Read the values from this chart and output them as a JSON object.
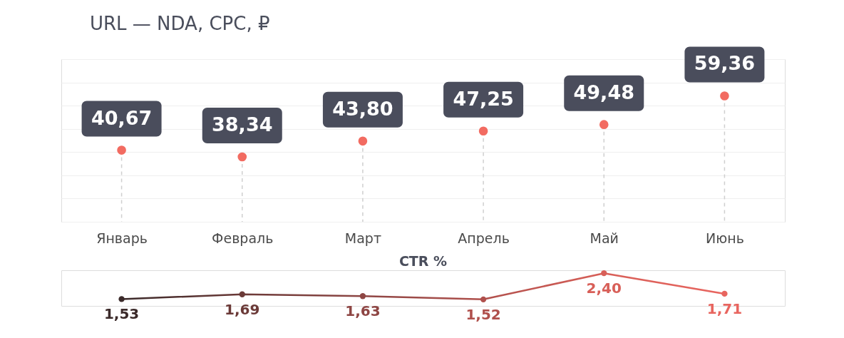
{
  "chart_data": [
    {
      "type": "lollipop",
      "title": "URL — NDA, CPC, ₽",
      "categories": [
        "Январь",
        "Февраль",
        "Март",
        "Апрель",
        "Май",
        "Июнь"
      ],
      "values": [
        40.67,
        38.34,
        43.8,
        47.25,
        49.48,
        59.36
      ],
      "value_labels": [
        "40,67",
        "38,34",
        "43,80",
        "47,25",
        "49,48",
        "59,36"
      ],
      "color": "#f26b61",
      "ylim": [
        16,
        72
      ],
      "yticks": [
        {
          "value": 16,
          "label": null
        },
        {
          "value": 24,
          "label": null
        },
        {
          "value": 32,
          "label": null
        },
        {
          "value": 40,
          "label": null
        },
        {
          "value": 48,
          "label": null
        },
        {
          "value": 56,
          "label": null
        },
        {
          "value": 64,
          "label": null
        },
        {
          "value": 72,
          "label": null
        }
      ],
      "grid": "y",
      "tick_labels": "x",
      "line_style": "dashed",
      "marker": "circle"
    },
    {
      "type": "line",
      "title": "CTR %",
      "categories": [
        null,
        null,
        null,
        null,
        null,
        null
      ],
      "values": [
        1.53,
        1.69,
        1.63,
        1.52,
        2.4,
        1.71
      ],
      "value_labels": [
        "1,53",
        "1,69",
        "1,63",
        "1,52",
        "2,40",
        "1,71"
      ],
      "colors": [
        "#3b2a2a",
        "#6b3a38",
        "#8e4644",
        "#b0504c",
        "#d85f58",
        "#e8655f"
      ],
      "ylim": [
        1.3,
        2.5
      ],
      "tick_labels": false,
      "marker": "circle"
    }
  ]
}
